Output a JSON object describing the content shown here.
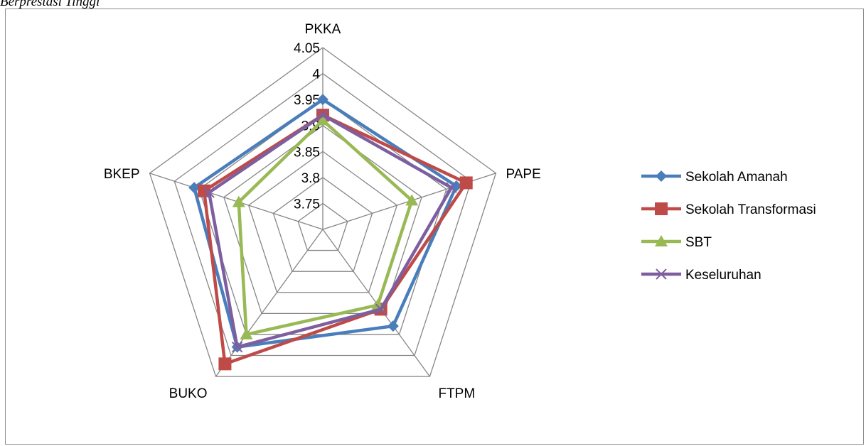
{
  "caption": "Berprestasi Tinggi",
  "chart_data": {
    "type": "radar",
    "categories": [
      "PKKA",
      "PAPE",
      "FTPM",
      "BUKO",
      "BKEP"
    ],
    "rlim": [
      3.7,
      4.05
    ],
    "ticks": [
      "3.75",
      "3.8",
      "3.85",
      "3.9",
      "3.95",
      "4",
      "4.05"
    ],
    "series": [
      {
        "name": "Sekolah Amanah",
        "color": "#4a7ebb",
        "marker": "diamond",
        "values": [
          3.95,
          3.97,
          3.93,
          3.98,
          3.96
        ]
      },
      {
        "name": "Sekolah Transformasi",
        "color": "#be4b48",
        "marker": "square",
        "values": [
          3.92,
          3.99,
          3.89,
          4.02,
          3.94
        ]
      },
      {
        "name": "SBT",
        "color": "#98b954",
        "marker": "triangle",
        "values": [
          3.91,
          3.88,
          3.88,
          3.95,
          3.87
        ]
      },
      {
        "name": "Keseluruhan",
        "color": "#7d5fa0",
        "marker": "x",
        "values": [
          3.92,
          3.96,
          3.89,
          3.98,
          3.93
        ]
      }
    ],
    "legend_position": "right",
    "grid": true
  }
}
